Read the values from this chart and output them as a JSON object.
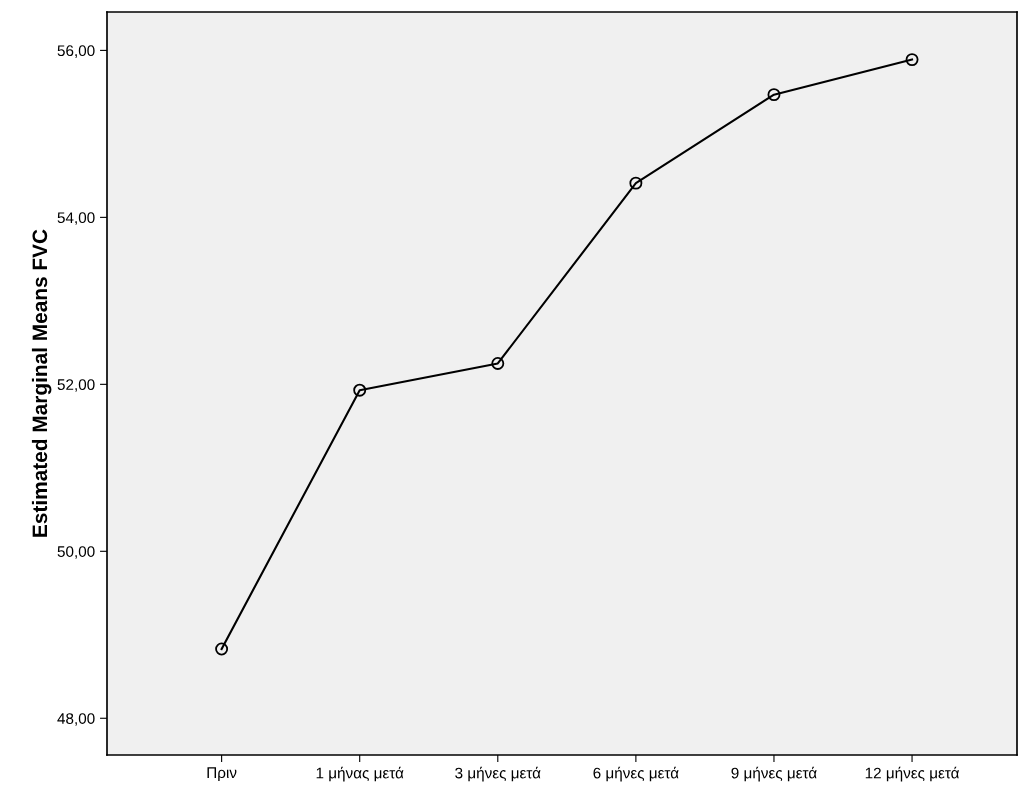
{
  "chart_data": {
    "type": "line",
    "ylabel": "Estimated Marginal Means FVC",
    "categories": [
      "Πριν",
      "1 μήνας μετά",
      "3 μήνες μετά",
      "6 μήνες μετά",
      "9 μήνες μετά",
      "12 μήνες μετά"
    ],
    "series": [
      {
        "color": "#000000",
        "values": [
          48.83,
          51.93,
          52.25,
          54.41,
          55.47,
          55.89
        ]
      }
    ],
    "ylim": [
      47.56,
      56.46
    ],
    "yticks": [
      {
        "value": 48,
        "label": "48,00"
      },
      {
        "value": 50,
        "label": "50,00"
      },
      {
        "value": 52,
        "label": "52,00"
      },
      {
        "value": 54,
        "label": "54,00"
      },
      {
        "value": 56,
        "label": "56,00"
      }
    ],
    "marker": "circle",
    "line_style": "solid",
    "grid": false,
    "legend": false
  }
}
